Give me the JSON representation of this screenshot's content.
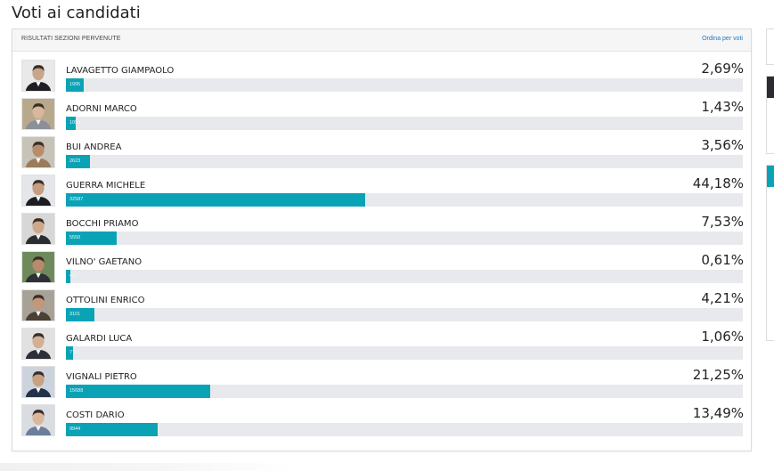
{
  "page_title": "Voti ai candidati",
  "panel": {
    "header_label": "RISULTATI SEZIONI PERVENUTE",
    "sort_label": "Ordina per voti"
  },
  "colors": {
    "bar": "#0aa3b6",
    "track": "#e8e9ec",
    "link": "#1a76c4",
    "side_dark": "#2b2d30"
  },
  "candidates": [
    {
      "name": "LAVAGETTO GIAMPAOLO",
      "percent": "2,69%",
      "votes": "1995",
      "share": 0.0269
    },
    {
      "name": "ADORNI MARCO",
      "percent": "1,43%",
      "votes": "1054",
      "share": 0.0143
    },
    {
      "name": "BUI ANDREA",
      "percent": "3,56%",
      "votes": "2623",
      "share": 0.0356
    },
    {
      "name": "GUERRA MICHELE",
      "percent": "44,18%",
      "votes": "32587",
      "share": 0.4418
    },
    {
      "name": "BOCCHI PRIAMO",
      "percent": "7,53%",
      "votes": "5550",
      "share": 0.0753
    },
    {
      "name": "VILNO' GAETANO",
      "percent": "0,61%",
      "votes": "452",
      "share": 0.0061
    },
    {
      "name": "OTTOLINI ENRICO",
      "percent": "4,21%",
      "votes": "3101",
      "share": 0.0421
    },
    {
      "name": "GALARDI LUCA",
      "percent": "1,06%",
      "votes": "778",
      "share": 0.0106
    },
    {
      "name": "VIGNALI PIETRO",
      "percent": "21,25%",
      "votes": "15688",
      "share": 0.2125
    },
    {
      "name": "COSTI DARIO",
      "percent": "13,49%",
      "votes": "9944",
      "share": 0.1349
    }
  ]
}
